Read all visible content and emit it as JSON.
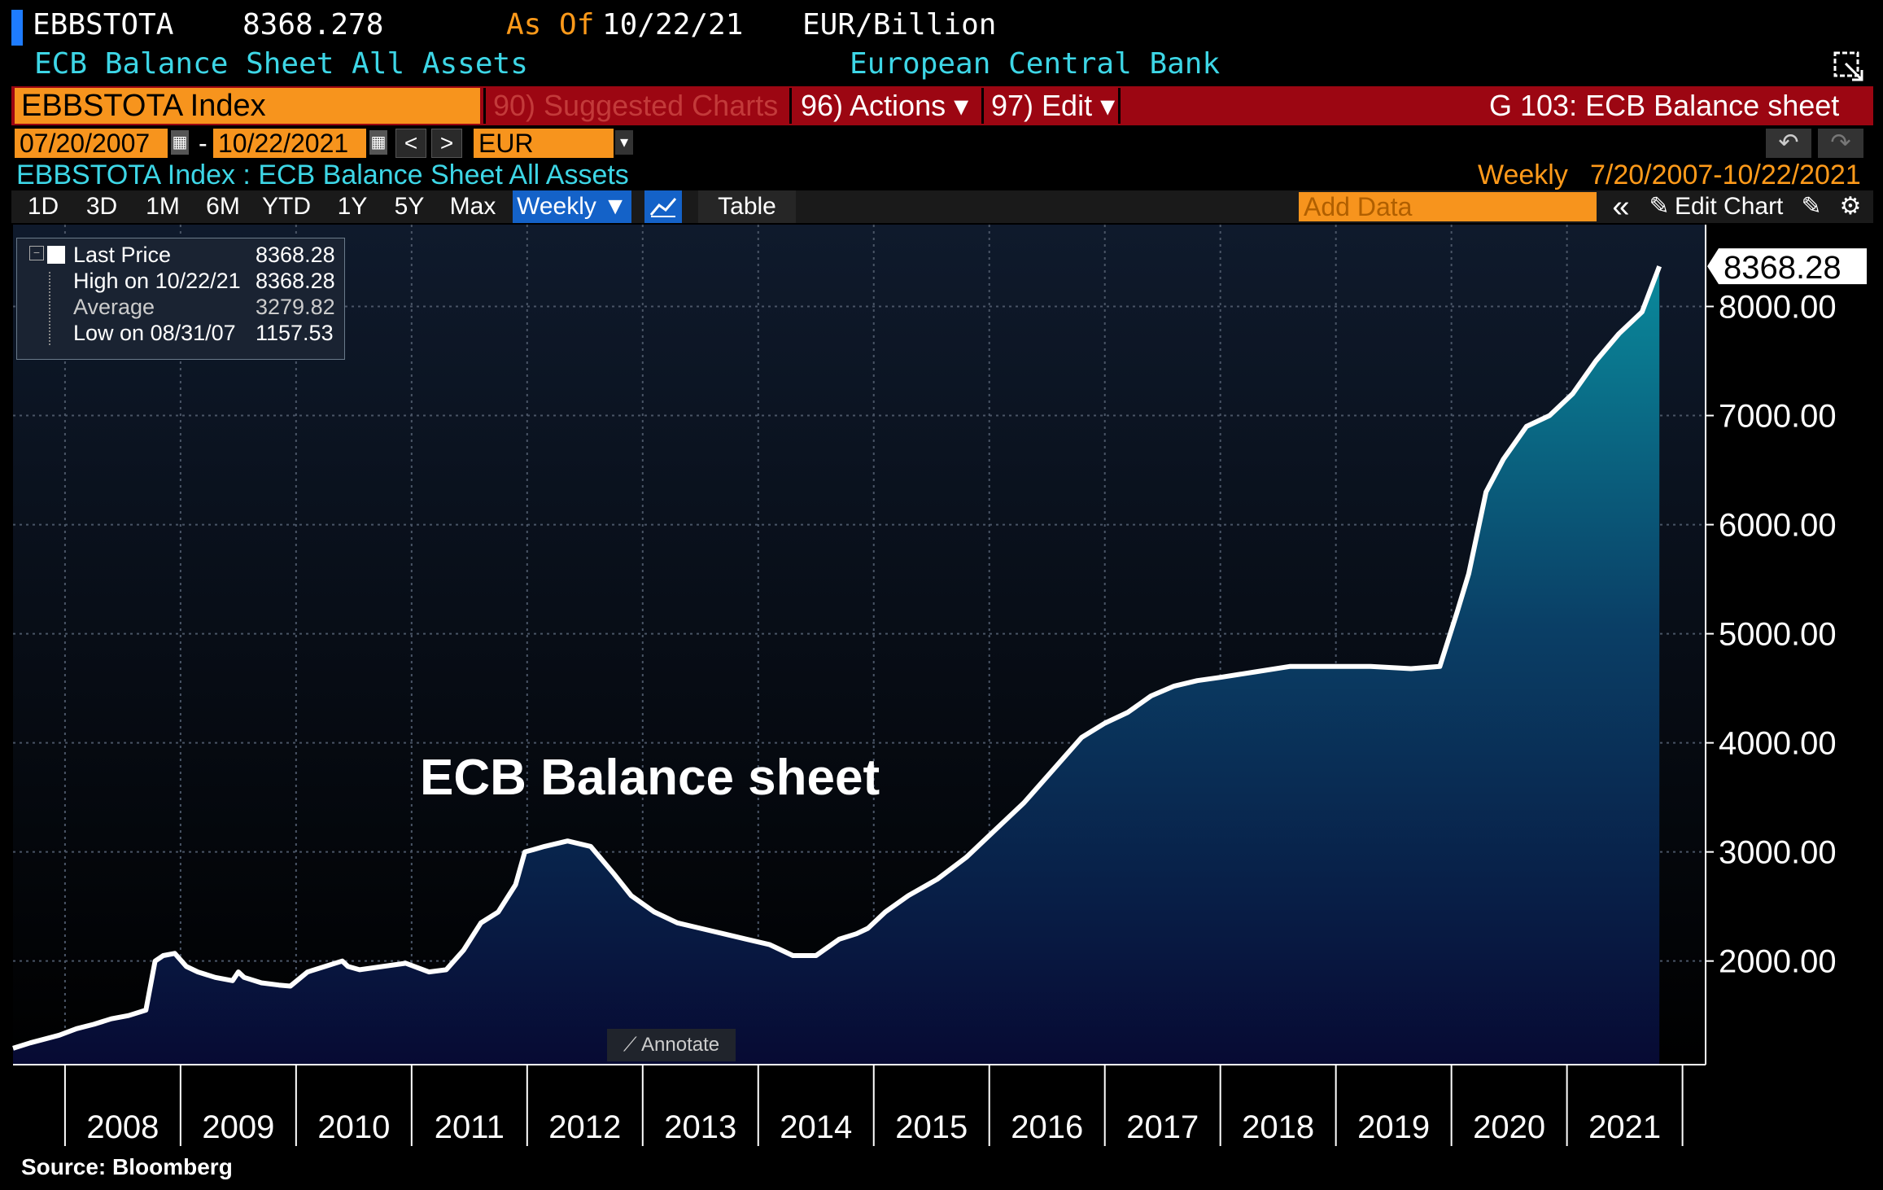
{
  "header": {
    "ticker": "EBBSTOTA",
    "last_value": "8368.278",
    "as_of_label": "As Of",
    "as_of_date": "10/22/21",
    "units": "EUR/Billion",
    "description": "ECB Balance Sheet All Assets",
    "source_name": "European Central Bank"
  },
  "command_bar": {
    "security": "EBBSTOTA Index",
    "suggested": "90) Suggested Charts",
    "actions": "96) Actions ▾",
    "edit": "97) Edit ▾",
    "graph_name": "G 103: ECB Balance sheet"
  },
  "date_range": {
    "start": "07/20/2007",
    "end": "10/22/2021",
    "dash": "-",
    "currency": "EUR",
    "prev": "<",
    "next": ">"
  },
  "subtitle": {
    "left": "EBBSTOTA Index : ECB Balance Sheet All Assets",
    "frequency": "Weekly",
    "range": "7/20/2007-10/22/2021"
  },
  "toolbar": {
    "periods": [
      "1D",
      "3D",
      "1M",
      "6M",
      "YTD",
      "1Y",
      "5Y",
      "Max"
    ],
    "frequency": "Weekly ▼",
    "table": "Table",
    "add_data_placeholder": "Add Data",
    "edit_chart": "Edit Chart",
    "collapse": "«"
  },
  "legend": {
    "last_label": "Last Price",
    "last_value": "8368.28",
    "high_label": "High on 10/22/21",
    "high_value": "8368.28",
    "avg_label": "Average",
    "avg_value": "3279.82",
    "low_label": "Low on 08/31/07",
    "low_value": "1157.53"
  },
  "chart_title": "ECB Balance sheet",
  "annotate_label": "Annotate",
  "source": "Source:  Bloomberg",
  "colors": {
    "line": "#ffffff",
    "fill_top": "#0a8a9c",
    "fill_bottom": "#070a33",
    "accent_orange": "#f7941d",
    "bar_red": "#9c0612"
  },
  "chart_data": {
    "type": "area",
    "title": "ECB Balance sheet",
    "xlabel": "",
    "ylabel": "",
    "x_ticks": [
      "2008",
      "2009",
      "2010",
      "2011",
      "2012",
      "2013",
      "2014",
      "2015",
      "2016",
      "2017",
      "2018",
      "2019",
      "2020",
      "2021"
    ],
    "y_ticks": [
      2000,
      3000,
      4000,
      5000,
      6000,
      7000,
      8000
    ],
    "ylim": [
      1050,
      8750
    ],
    "xlim": [
      2007.55,
      2022.2
    ],
    "last_value": 8368.28,
    "last_value_label": "8368.28",
    "series": [
      {
        "name": "",
        "x": [
          2007.55,
          2007.7,
          2007.95,
          2008.1,
          2008.25,
          2008.4,
          2008.55,
          2008.7,
          2008.78,
          2008.85,
          2008.95,
          2009.05,
          2009.15,
          2009.3,
          2009.45,
          2009.5,
          2009.55,
          2009.7,
          2009.85,
          2009.95,
          2010.1,
          2010.25,
          2010.4,
          2010.45,
          2010.55,
          2010.75,
          2010.95,
          2011.15,
          2011.3,
          2011.45,
          2011.6,
          2011.75,
          2011.9,
          2011.98,
          2012.05,
          2012.15,
          2012.35,
          2012.55,
          2012.75,
          2012.9,
          2013.1,
          2013.3,
          2013.5,
          2013.7,
          2013.9,
          2014.1,
          2014.3,
          2014.5,
          2014.7,
          2014.85,
          2014.95,
          2015.1,
          2015.3,
          2015.55,
          2015.8,
          2016.05,
          2016.3,
          2016.55,
          2016.8,
          2017.0,
          2017.2,
          2017.4,
          2017.6,
          2017.8,
          2018.0,
          2018.3,
          2018.6,
          2018.95,
          2019.3,
          2019.65,
          2019.9,
          2020.05,
          2020.15,
          2020.3,
          2020.45,
          2020.65,
          2020.85,
          2021.05,
          2021.25,
          2021.45,
          2021.65,
          2021.8
        ],
        "values": [
          1200,
          1250,
          1320,
          1380,
          1420,
          1470,
          1500,
          1550,
          2000,
          2050,
          2070,
          1950,
          1900,
          1850,
          1820,
          1900,
          1850,
          1800,
          1780,
          1770,
          1900,
          1950,
          2000,
          1950,
          1920,
          1950,
          1980,
          1900,
          1920,
          2100,
          2350,
          2450,
          2700,
          3000,
          3020,
          3050,
          3100,
          3050,
          2800,
          2600,
          2450,
          2350,
          2300,
          2250,
          2200,
          2150,
          2050,
          2050,
          2200,
          2250,
          2300,
          2450,
          2600,
          2750,
          2950,
          3200,
          3450,
          3750,
          4050,
          4180,
          4280,
          4430,
          4520,
          4570,
          4600,
          4650,
          4700,
          4700,
          4700,
          4680,
          4700,
          5200,
          5550,
          6300,
          6600,
          6900,
          7000,
          7200,
          7500,
          7750,
          7950,
          8368
        ]
      }
    ]
  }
}
